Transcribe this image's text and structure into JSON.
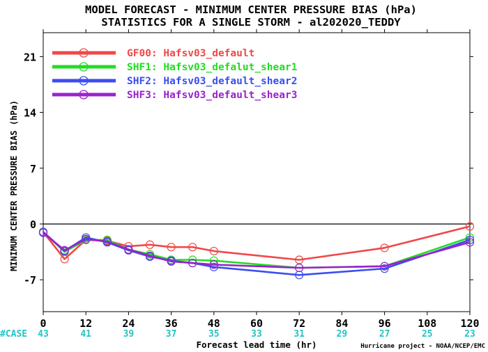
{
  "chart_data": {
    "type": "line",
    "title": "MODEL FORECAST - MINIMUM CENTER PRESSURE BIAS (hPa)",
    "subtitle": "STATISTICS FOR A SINGLE STORM - al202020_TEDDY",
    "xlabel": "Forecast lead time (hr)",
    "ylabel": "MINIMUM CENTER PRESSURE BIAS (hPa)",
    "xlim": [
      0,
      120
    ],
    "ylim": [
      -11,
      24
    ],
    "x_ticks": [
      0,
      12,
      24,
      36,
      48,
      60,
      72,
      84,
      96,
      108,
      120
    ],
    "y_ticks": [
      -7,
      0,
      7,
      14,
      21
    ],
    "case_label": "#CASE",
    "case_counts": [
      43,
      41,
      39,
      37,
      35,
      33,
      31,
      29,
      27,
      25,
      23
    ],
    "footer": "Hurricane project - NOAA/NCEP/EMC",
    "zero_line": true,
    "grid": false,
    "legend_position": "top-left",
    "series": [
      {
        "name": "GF00: Hafsv03_default",
        "color": "#f04848",
        "x": [
          0,
          6,
          12,
          18,
          24,
          30,
          36,
          42,
          48,
          72,
          96,
          120
        ],
        "y": [
          -1.0,
          -4.4,
          -2.0,
          -2.1,
          -2.8,
          -2.6,
          -2.9,
          -2.9,
          -3.4,
          -4.5,
          -3.0,
          -0.3
        ]
      },
      {
        "name": "SHF1: Hafsv03_defalut_shear1",
        "color": "#22dd22",
        "x": [
          0,
          6,
          12,
          18,
          24,
          30,
          36,
          42,
          48,
          72,
          96,
          120
        ],
        "y": [
          -1.0,
          -3.5,
          -2.0,
          -2.0,
          -3.2,
          -3.8,
          -4.5,
          -4.5,
          -4.6,
          -5.5,
          -5.3,
          -1.7
        ]
      },
      {
        "name": "SHF2: Hafsv03_default_shear2",
        "color": "#3a4ef0",
        "x": [
          0,
          6,
          12,
          18,
          24,
          30,
          36,
          42,
          48,
          72,
          96,
          120
        ],
        "y": [
          -1.0,
          -3.4,
          -1.7,
          -2.3,
          -3.3,
          -4.1,
          -4.6,
          -4.9,
          -5.4,
          -6.4,
          -5.6,
          -2.0
        ]
      },
      {
        "name": "SHF3: Hafsv03_default_shear3",
        "color": "#9a22cc",
        "x": [
          0,
          6,
          12,
          18,
          24,
          30,
          36,
          42,
          48,
          72,
          96,
          120
        ],
        "y": [
          -1.1,
          -3.3,
          -1.9,
          -2.2,
          -3.2,
          -4.0,
          -4.7,
          -4.9,
          -5.1,
          -5.5,
          -5.3,
          -2.3
        ]
      }
    ]
  }
}
